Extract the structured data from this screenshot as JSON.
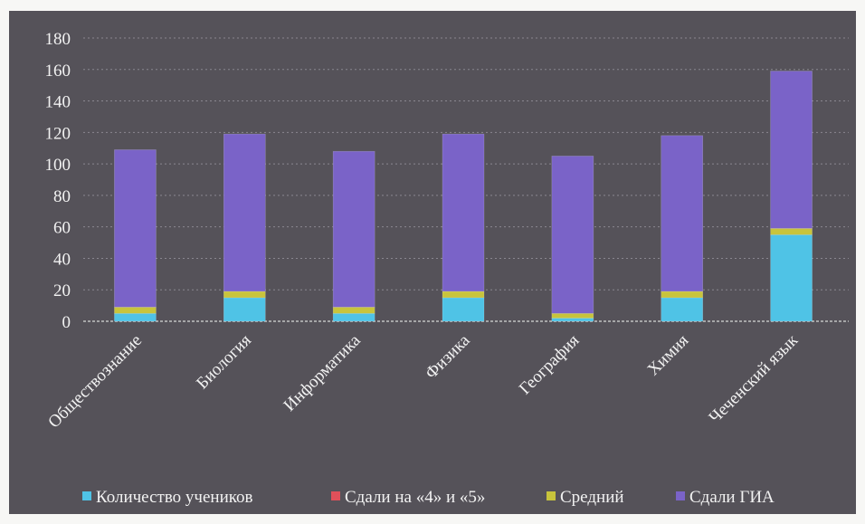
{
  "chart_data": {
    "type": "bar",
    "stacked": true,
    "categories": [
      "Обществознание",
      "Биология",
      "Информатика",
      "Физика",
      "География",
      "Химия",
      "Чеченский язык"
    ],
    "series": [
      {
        "name": "Количество учеников",
        "color": "#4fc3e6",
        "values": [
          5,
          15,
          5,
          15,
          2,
          15,
          55
        ]
      },
      {
        "name": "Сдали на «4» и «5»",
        "color": "#e0505a",
        "values": [
          0,
          0,
          0,
          0,
          0,
          0,
          0
        ]
      },
      {
        "name": "Средний",
        "color": "#c8c43c",
        "values": [
          4,
          4,
          4,
          4,
          3,
          4,
          4
        ]
      },
      {
        "name": "Сдали ГИА",
        "color": "#7a63c8",
        "values": [
          100,
          100,
          99,
          100,
          100,
          99,
          100
        ]
      }
    ],
    "ylim": [
      0,
      180
    ],
    "yticks": [
      "0",
      "20",
      "40",
      "60",
      "80",
      "100",
      "120",
      "140",
      "160",
      "180"
    ],
    "grid": true,
    "legend_position": "bottom"
  }
}
